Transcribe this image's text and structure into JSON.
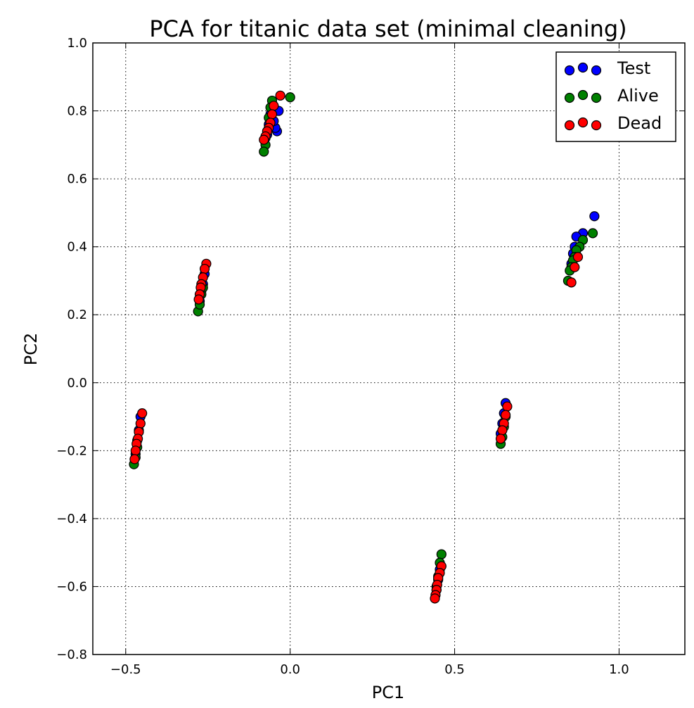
{
  "chart_data": {
    "type": "scatter",
    "title": "PCA for titanic data set (minimal cleaning)",
    "xlabel": "PC1",
    "ylabel": "PC2",
    "xlim": [
      -0.6,
      1.2
    ],
    "ylim": [
      -0.8,
      1.0
    ],
    "xticks": [
      -0.5,
      0.0,
      0.5,
      1.0
    ],
    "xtick_labels": [
      "−0.5",
      "0.0",
      "0.5",
      "1.0"
    ],
    "yticks": [
      -0.8,
      -0.6,
      -0.4,
      -0.2,
      0.0,
      0.2,
      0.4,
      0.6,
      0.8,
      1.0
    ],
    "ytick_labels": [
      "−0.8",
      "−0.6",
      "−0.4",
      "−0.2",
      "0.0",
      "0.2",
      "0.4",
      "0.6",
      "0.8",
      "1.0"
    ],
    "grid": true,
    "legend_position": "top-right",
    "series": [
      {
        "name": "Test",
        "color": "#0000ff",
        "points": [
          [
            -0.035,
            0.8
          ],
          [
            -0.04,
            0.74
          ],
          [
            -0.045,
            0.75
          ],
          [
            -0.05,
            0.77
          ],
          [
            -0.06,
            0.79
          ],
          [
            -0.065,
            0.76
          ],
          [
            -0.07,
            0.73
          ],
          [
            -0.075,
            0.72
          ],
          [
            -0.26,
            0.32
          ],
          [
            -0.265,
            0.29
          ],
          [
            -0.27,
            0.27
          ],
          [
            -0.275,
            0.24
          ],
          [
            0.925,
            0.49
          ],
          [
            0.89,
            0.44
          ],
          [
            0.87,
            0.43
          ],
          [
            0.865,
            0.4
          ],
          [
            0.86,
            0.38
          ],
          [
            0.855,
            0.35
          ],
          [
            0.655,
            -0.06
          ],
          [
            0.65,
            -0.09
          ],
          [
            0.645,
            -0.12
          ],
          [
            0.64,
            -0.15
          ],
          [
            0.455,
            -0.55
          ],
          [
            0.45,
            -0.58
          ],
          [
            0.445,
            -0.61
          ],
          [
            -0.455,
            -0.1
          ],
          [
            -0.46,
            -0.14
          ],
          [
            -0.465,
            -0.17
          ],
          [
            -0.47,
            -0.21
          ]
        ]
      },
      {
        "name": "Alive",
        "color": "#008000",
        "points": [
          [
            0.0,
            0.84
          ],
          [
            -0.055,
            0.83
          ],
          [
            -0.06,
            0.81
          ],
          [
            -0.065,
            0.78
          ],
          [
            -0.07,
            0.74
          ],
          [
            -0.075,
            0.7
          ],
          [
            -0.08,
            0.68
          ],
          [
            -0.28,
            0.21
          ],
          [
            -0.275,
            0.23
          ],
          [
            -0.27,
            0.26
          ],
          [
            -0.265,
            0.28
          ],
          [
            0.92,
            0.44
          ],
          [
            0.89,
            0.42
          ],
          [
            0.88,
            0.4
          ],
          [
            0.87,
            0.39
          ],
          [
            0.865,
            0.37
          ],
          [
            0.86,
            0.36
          ],
          [
            0.855,
            0.34
          ],
          [
            0.85,
            0.33
          ],
          [
            0.845,
            0.3
          ],
          [
            0.64,
            -0.18
          ],
          [
            0.645,
            -0.16
          ],
          [
            0.65,
            -0.13
          ],
          [
            0.655,
            -0.1
          ],
          [
            0.46,
            -0.505
          ],
          [
            0.455,
            -0.53
          ],
          [
            0.45,
            -0.57
          ],
          [
            0.445,
            -0.6
          ],
          [
            -0.475,
            -0.24
          ],
          [
            -0.47,
            -0.22
          ],
          [
            -0.465,
            -0.19
          ]
        ]
      },
      {
        "name": "Dead",
        "color": "#ff0000",
        "points": [
          [
            -0.03,
            0.845
          ],
          [
            -0.05,
            0.815
          ],
          [
            -0.055,
            0.79
          ],
          [
            -0.06,
            0.765
          ],
          [
            -0.065,
            0.75
          ],
          [
            -0.07,
            0.74
          ],
          [
            -0.075,
            0.725
          ],
          [
            -0.08,
            0.715
          ],
          [
            -0.255,
            0.35
          ],
          [
            -0.26,
            0.335
          ],
          [
            -0.265,
            0.31
          ],
          [
            -0.27,
            0.29
          ],
          [
            -0.272,
            0.28
          ],
          [
            -0.275,
            0.26
          ],
          [
            -0.278,
            0.245
          ],
          [
            0.875,
            0.37
          ],
          [
            0.865,
            0.34
          ],
          [
            0.855,
            0.295
          ],
          [
            0.66,
            -0.07
          ],
          [
            0.655,
            -0.095
          ],
          [
            0.65,
            -0.12
          ],
          [
            0.645,
            -0.14
          ],
          [
            0.64,
            -0.165
          ],
          [
            0.46,
            -0.54
          ],
          [
            0.455,
            -0.56
          ],
          [
            0.45,
            -0.575
          ],
          [
            0.447,
            -0.595
          ],
          [
            0.445,
            -0.61
          ],
          [
            0.442,
            -0.625
          ],
          [
            0.44,
            -0.635
          ],
          [
            -0.45,
            -0.09
          ],
          [
            -0.455,
            -0.12
          ],
          [
            -0.46,
            -0.145
          ],
          [
            -0.463,
            -0.165
          ],
          [
            -0.467,
            -0.18
          ],
          [
            -0.47,
            -0.2
          ],
          [
            -0.473,
            -0.225
          ]
        ]
      }
    ]
  }
}
